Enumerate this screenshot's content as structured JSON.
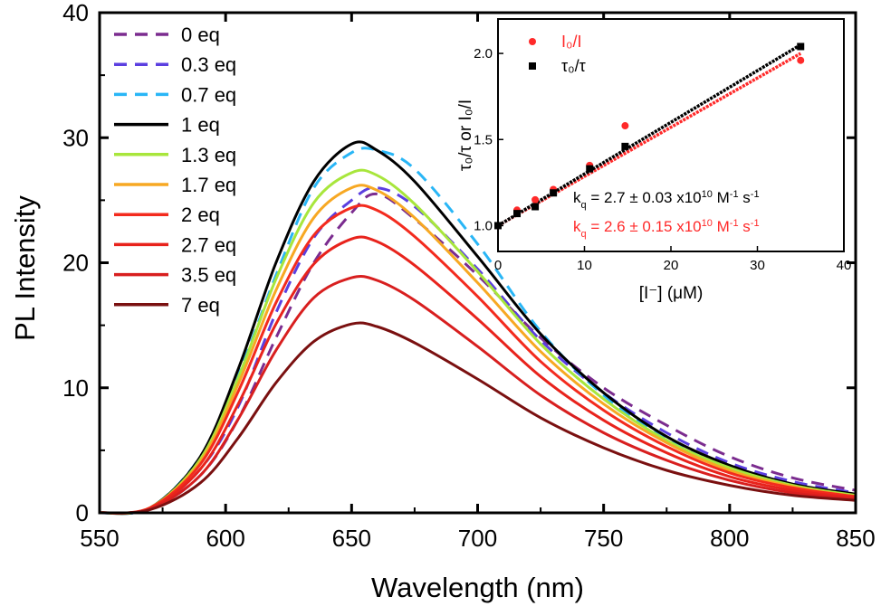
{
  "chart_data": [
    {
      "type": "line",
      "title": "",
      "xlabel": "Wavelength (nm)",
      "ylabel": "PL Intensity",
      "xlim": [
        550,
        850
      ],
      "ylim": [
        0,
        40
      ],
      "x_ticks": [
        "550",
        "600",
        "650",
        "700",
        "750",
        "800",
        "850"
      ],
      "y_ticks": [
        "0",
        "10",
        "20",
        "30",
        "40"
      ],
      "legend_position": "top-left",
      "series": [
        {
          "name": "0 eq",
          "style": "dashed",
          "color": "#7B2C8F",
          "points": [
            [
              550,
              0
            ],
            [
              570,
              0.3
            ],
            [
              590,
              3
            ],
            [
              605,
              7.5
            ],
            [
              620,
              14
            ],
            [
              635,
              20
            ],
            [
              650,
              24
            ],
            [
              660,
              25.5
            ],
            [
              675,
              23.5
            ],
            [
              700,
              19
            ],
            [
              725,
              14
            ],
            [
              750,
              10
            ],
            [
              775,
              7
            ],
            [
              800,
              4.5
            ],
            [
              825,
              2.8
            ],
            [
              850,
              1.8
            ]
          ]
        },
        {
          "name": "0.3 eq",
          "style": "dashed",
          "color": "#5B3FE0",
          "points": [
            [
              550,
              0
            ],
            [
              570,
              0.3
            ],
            [
              590,
              3.5
            ],
            [
              605,
              8.5
            ],
            [
              620,
              16
            ],
            [
              635,
              22
            ],
            [
              650,
              25
            ],
            [
              660,
              26
            ],
            [
              675,
              24.5
            ],
            [
              700,
              19.5
            ],
            [
              725,
              13.8
            ],
            [
              750,
              9.6
            ],
            [
              775,
              6.4
            ],
            [
              800,
              4
            ],
            [
              825,
              2.5
            ],
            [
              850,
              1.6
            ]
          ]
        },
        {
          "name": "0.7 eq",
          "style": "dashed",
          "color": "#29B6F6",
          "points": [
            [
              550,
              0
            ],
            [
              570,
              0.4
            ],
            [
              590,
              4.5
            ],
            [
              605,
              11
            ],
            [
              620,
              19
            ],
            [
              635,
              26
            ],
            [
              650,
              28.8
            ],
            [
              660,
              29
            ],
            [
              675,
              27.5
            ],
            [
              700,
              21.5
            ],
            [
              725,
              14.5
            ],
            [
              750,
              9.4
            ],
            [
              775,
              5.9
            ],
            [
              800,
              3.6
            ],
            [
              825,
              2.2
            ],
            [
              850,
              1.4
            ]
          ]
        },
        {
          "name": "1 eq",
          "style": "solid",
          "color": "#000000",
          "points": [
            [
              550,
              0
            ],
            [
              570,
              0.4
            ],
            [
              590,
              4.5
            ],
            [
              605,
              11.5
            ],
            [
              620,
              20
            ],
            [
              635,
              26.5
            ],
            [
              650,
              29.5
            ],
            [
              660,
              29
            ],
            [
              675,
              26.5
            ],
            [
              700,
              20.5
            ],
            [
              725,
              14.3
            ],
            [
              750,
              9.6
            ],
            [
              775,
              6.1
            ],
            [
              800,
              3.8
            ],
            [
              825,
              2.3
            ],
            [
              850,
              1.5
            ]
          ]
        },
        {
          "name": "1.3 eq",
          "style": "solid",
          "color": "#A8E63C",
          "points": [
            [
              550,
              0
            ],
            [
              570,
              0.4
            ],
            [
              590,
              4.3
            ],
            [
              605,
              10.8
            ],
            [
              620,
              18.7
            ],
            [
              635,
              24.8
            ],
            [
              650,
              27.2
            ],
            [
              660,
              27
            ],
            [
              675,
              24.7
            ],
            [
              700,
              19.3
            ],
            [
              725,
              13.5
            ],
            [
              750,
              9.1
            ],
            [
              775,
              5.8
            ],
            [
              800,
              3.6
            ],
            [
              825,
              2.2
            ],
            [
              850,
              1.4
            ]
          ]
        },
        {
          "name": "1.7 eq",
          "style": "solid",
          "color": "#F7A823",
          "points": [
            [
              550,
              0
            ],
            [
              570,
              0.4
            ],
            [
              590,
              4.1
            ],
            [
              605,
              10.3
            ],
            [
              620,
              17.8
            ],
            [
              635,
              23.6
            ],
            [
              650,
              26
            ],
            [
              660,
              25.8
            ],
            [
              675,
              23.6
            ],
            [
              700,
              18.4
            ],
            [
              725,
              12.9
            ],
            [
              750,
              8.7
            ],
            [
              775,
              5.6
            ],
            [
              800,
              3.4
            ],
            [
              825,
              2.1
            ],
            [
              850,
              1.3
            ]
          ]
        },
        {
          "name": "2 eq",
          "style": "solid",
          "color": "#F32B1E",
          "points": [
            [
              550,
              0
            ],
            [
              570,
              0.4
            ],
            [
              590,
              3.9
            ],
            [
              605,
              9.7
            ],
            [
              620,
              16.8
            ],
            [
              635,
              22.2
            ],
            [
              650,
              24.4
            ],
            [
              660,
              24.2
            ],
            [
              675,
              22.1
            ],
            [
              700,
              17.3
            ],
            [
              725,
              12.1
            ],
            [
              750,
              8.2
            ],
            [
              775,
              5.3
            ],
            [
              800,
              3.2
            ],
            [
              825,
              2
            ],
            [
              850,
              1.3
            ]
          ]
        },
        {
          "name": "2.7 eq",
          "style": "solid",
          "color": "#E8231C",
          "points": [
            [
              550,
              0
            ],
            [
              570,
              0.35
            ],
            [
              590,
              3.5
            ],
            [
              605,
              8.7
            ],
            [
              620,
              15.1
            ],
            [
              635,
              19.9
            ],
            [
              650,
              21.9
            ],
            [
              660,
              21.7
            ],
            [
              675,
              19.8
            ],
            [
              700,
              15.5
            ],
            [
              725,
              10.9
            ],
            [
              750,
              7.4
            ],
            [
              775,
              4.8
            ],
            [
              800,
              2.9
            ],
            [
              825,
              1.8
            ],
            [
              850,
              1.2
            ]
          ]
        },
        {
          "name": "3.5 eq",
          "style": "solid",
          "color": "#D81F1F",
          "points": [
            [
              550,
              0
            ],
            [
              570,
              0.3
            ],
            [
              590,
              3
            ],
            [
              605,
              7.5
            ],
            [
              620,
              13
            ],
            [
              635,
              17.2
            ],
            [
              650,
              18.8
            ],
            [
              660,
              18.6
            ],
            [
              675,
              17
            ],
            [
              700,
              13.3
            ],
            [
              725,
              9.4
            ],
            [
              750,
              6.4
            ],
            [
              775,
              4.2
            ],
            [
              800,
              2.6
            ],
            [
              825,
              1.6
            ],
            [
              850,
              1.1
            ]
          ]
        },
        {
          "name": "7 eq",
          "style": "solid",
          "color": "#7A1010",
          "points": [
            [
              550,
              0
            ],
            [
              570,
              0.25
            ],
            [
              590,
              2.4
            ],
            [
              605,
              6
            ],
            [
              620,
              10.4
            ],
            [
              635,
              13.7
            ],
            [
              650,
              15.1
            ],
            [
              660,
              14.9
            ],
            [
              675,
              13.6
            ],
            [
              700,
              10.7
            ],
            [
              725,
              7.6
            ],
            [
              750,
              5.2
            ],
            [
              775,
              3.4
            ],
            [
              800,
              2.2
            ],
            [
              825,
              1.4
            ],
            [
              850,
              1
            ]
          ]
        }
      ]
    },
    {
      "type": "scatter",
      "title": "",
      "xlabel": "[I⁻] (μM)",
      "ylabel": "τ₀/τ or I₀/I",
      "xlim": [
        0,
        40
      ],
      "ylim": [
        0.85,
        2.2
      ],
      "x_ticks": [
        "0",
        "10",
        "20",
        "30",
        "40"
      ],
      "y_ticks": [
        "1.0",
        "1.5",
        "2.0"
      ],
      "legend_position": "top-left",
      "series": [
        {
          "name": "I₀/I",
          "marker": "circle",
          "color": "#FF2A2A",
          "x": [
            0,
            2.2,
            4.3,
            6.4,
            10.6,
            14.7,
            35
          ],
          "y": [
            1.0,
            1.09,
            1.15,
            1.21,
            1.35,
            1.58,
            1.96
          ],
          "fit": {
            "x": [
              0,
              35
            ],
            "y": [
              1.0,
              2.0
            ]
          },
          "annotation": "k_q = 2.6 ± 0.15 x10^10 M^-1 s^-1"
        },
        {
          "name": "τ₀/τ",
          "marker": "square",
          "color": "#000000",
          "x": [
            0,
            2.2,
            4.3,
            6.4,
            10.6,
            14.7,
            35
          ],
          "y": [
            1.0,
            1.07,
            1.11,
            1.19,
            1.33,
            1.46,
            2.04
          ],
          "fit": {
            "x": [
              0,
              35
            ],
            "y": [
              1.0,
              2.05
            ]
          },
          "annotation": "k_q = 2.7 ± 0.03 x10^10 M^-1 s^-1"
        }
      ]
    }
  ]
}
